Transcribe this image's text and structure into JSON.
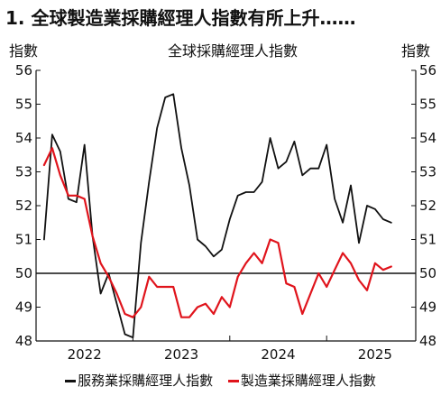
{
  "title": "1. 全球製造業採購經理人指數有所上升……",
  "chart_data": {
    "type": "line",
    "title": "全球採購經理人指數",
    "ylabel_left": "指數",
    "ylabel_right": "指數",
    "ylim": [
      48,
      56
    ],
    "yticks": [
      48,
      49,
      50,
      51,
      52,
      53,
      54,
      55,
      56
    ],
    "xlim": [
      2021.5,
      2025.42
    ],
    "x_tick_labels": [
      {
        "label": "2022",
        "x": 2022.0
      },
      {
        "label": "2023",
        "x": 2023.0
      },
      {
        "label": "2024",
        "x": 2024.0
      },
      {
        "label": "2025",
        "x": 2025.0
      }
    ],
    "reference_line": 50,
    "series": [
      {
        "name": "服務業採購經理人指數",
        "color": "#111111",
        "x": [
          2021.583,
          2021.667,
          2021.75,
          2021.833,
          2021.917,
          2022.0,
          2022.083,
          2022.167,
          2022.25,
          2022.333,
          2022.417,
          2022.5,
          2022.583,
          2022.667,
          2022.75,
          2022.833,
          2022.917,
          2023.0,
          2023.083,
          2023.167,
          2023.25,
          2023.333,
          2023.417,
          2023.5,
          2023.583,
          2023.667,
          2023.75,
          2023.833,
          2023.917,
          2024.0,
          2024.083,
          2024.167,
          2024.25,
          2024.333,
          2024.417,
          2024.5,
          2024.583,
          2024.667,
          2024.75,
          2024.833,
          2024.917,
          2025.0,
          2025.083,
          2025.167
        ],
        "values": [
          51.0,
          54.1,
          53.6,
          52.2,
          52.1,
          53.8,
          51.1,
          49.4,
          50.0,
          49.1,
          48.2,
          48.1,
          50.9,
          52.7,
          54.3,
          55.2,
          55.3,
          53.7,
          52.6,
          51.0,
          50.8,
          50.5,
          50.7,
          51.6,
          52.3,
          52.4,
          52.4,
          52.7,
          54.0,
          53.1,
          53.3,
          53.9,
          52.9,
          53.1,
          53.1,
          53.8,
          52.2,
          51.5,
          52.6,
          50.9,
          52.0,
          51.9,
          51.6,
          51.5
        ]
      },
      {
        "name": "製造業採購經理人指數",
        "color": "#e0141c",
        "x": [
          2021.583,
          2021.667,
          2021.75,
          2021.833,
          2021.917,
          2022.0,
          2022.083,
          2022.167,
          2022.25,
          2022.333,
          2022.417,
          2022.5,
          2022.583,
          2022.667,
          2022.75,
          2022.833,
          2022.917,
          2023.0,
          2023.083,
          2023.167,
          2023.25,
          2023.333,
          2023.417,
          2023.5,
          2023.583,
          2023.667,
          2023.75,
          2023.833,
          2023.917,
          2024.0,
          2024.083,
          2024.167,
          2024.25,
          2024.333,
          2024.417,
          2024.5,
          2024.583,
          2024.667,
          2024.75,
          2024.833,
          2024.917,
          2025.0,
          2025.083,
          2025.167
        ],
        "values": [
          53.2,
          53.7,
          52.9,
          52.3,
          52.3,
          52.2,
          51.1,
          50.3,
          49.9,
          49.4,
          48.8,
          48.7,
          49.0,
          49.9,
          49.6,
          49.6,
          49.6,
          48.7,
          48.7,
          49.0,
          49.1,
          48.8,
          49.3,
          49.0,
          49.9,
          50.3,
          50.6,
          50.3,
          51.0,
          50.9,
          49.7,
          49.6,
          48.8,
          49.4,
          50.0,
          49.6,
          50.1,
          50.6,
          50.3,
          49.8,
          49.5,
          50.3,
          50.1,
          50.2
        ]
      }
    ],
    "grid": false
  },
  "legend": [
    {
      "label": "服務業採購經理人指數",
      "color": "#111111"
    },
    {
      "label": "製造業採購經理人指數",
      "color": "#e0141c"
    }
  ]
}
